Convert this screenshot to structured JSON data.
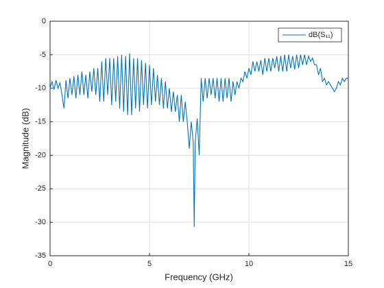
{
  "chart_data": {
    "type": "line",
    "xlabel": "Frequency (GHz)",
    "ylabel": "Magnitude (dB)",
    "x": [
      0,
      0.1,
      0.2,
      0.3,
      0.4,
      0.5,
      0.6,
      0.7,
      0.8,
      0.9,
      1,
      1.1,
      1.2,
      1.3,
      1.4,
      1.5,
      1.6,
      1.7,
      1.8,
      1.9,
      2,
      2.1,
      2.2,
      2.3,
      2.4,
      2.5,
      2.6,
      2.7,
      2.8,
      2.9,
      3,
      3.1,
      3.2,
      3.3,
      3.4,
      3.5,
      3.6,
      3.7,
      3.8,
      3.9,
      4,
      4.1,
      4.2,
      4.3,
      4.4,
      4.5,
      4.6,
      4.7,
      4.8,
      4.9,
      5,
      5.1,
      5.2,
      5.3,
      5.4,
      5.5,
      5.6,
      5.7,
      5.8,
      5.9,
      6,
      6.1,
      6.2,
      6.3,
      6.4,
      6.5,
      6.6,
      6.7,
      6.8,
      6.9,
      7,
      7.1,
      7.2,
      7.25,
      7.3,
      7.4,
      7.5,
      7.6,
      7.7,
      7.8,
      7.9,
      8,
      8.1,
      8.2,
      8.3,
      8.4,
      8.5,
      8.6,
      8.7,
      8.8,
      8.9,
      9,
      9.1,
      9.2,
      9.3,
      9.4,
      9.5,
      9.6,
      9.7,
      9.8,
      9.9,
      10,
      10.1,
      10.2,
      10.3,
      10.4,
      10.5,
      10.6,
      10.7,
      10.8,
      10.9,
      11,
      11.1,
      11.2,
      11.3,
      11.4,
      11.5,
      11.6,
      11.7,
      11.8,
      11.9,
      12,
      12.1,
      12.2,
      12.3,
      12.4,
      12.5,
      12.6,
      12.7,
      12.8,
      12.9,
      13,
      13.1,
      13.2,
      13.3,
      13.4,
      13.5,
      13.6,
      13.7,
      13.8,
      13.9,
      14,
      14.1,
      14.2,
      14.3,
      14.4,
      14.5,
      14.6,
      14.7,
      14.8,
      14.9,
      15
    ],
    "series": [
      {
        "name": "dB(S₁₁)",
        "color": "#0072BD",
        "values": [
          -10,
          -9,
          -10.2,
          -8.8,
          -10,
          -9.2,
          -11,
          -13,
          -8.8,
          -11.5,
          -8.5,
          -11,
          -8.2,
          -11.5,
          -8,
          -11,
          -7.5,
          -11,
          -8,
          -11.5,
          -7.5,
          -10.5,
          -7,
          -11,
          -7,
          -12,
          -6,
          -12,
          -5.5,
          -11,
          -5.5,
          -12.5,
          -5.5,
          -12,
          -5.2,
          -13,
          -5,
          -13.5,
          -5.2,
          -14,
          -4.8,
          -14,
          -5.5,
          -13,
          -5.5,
          -13.5,
          -5.8,
          -12.5,
          -6.2,
          -13,
          -6.5,
          -12.5,
          -7,
          -12,
          -8,
          -12.5,
          -8.5,
          -13,
          -9,
          -13,
          -10,
          -13.5,
          -10.5,
          -13.5,
          -11,
          -15,
          -11,
          -15,
          -12,
          -15,
          -19,
          -15,
          -18,
          -30.7,
          -18,
          -14.5,
          -20,
          -8.5,
          -12,
          -8.5,
          -11.5,
          -8.5,
          -11,
          -8.5,
          -11.5,
          -8.5,
          -12,
          -8.5,
          -12,
          -8.5,
          -11.5,
          -8.5,
          -12,
          -9,
          -11,
          -9,
          -10,
          -8.5,
          -9,
          -7.5,
          -8.5,
          -7,
          -8,
          -6,
          -7.5,
          -6,
          -7.5,
          -5.8,
          -8,
          -5.5,
          -7.5,
          -5.5,
          -7.5,
          -5.5,
          -7,
          -5.2,
          -7.5,
          -5.2,
          -7.5,
          -5,
          -7.5,
          -5,
          -7,
          -5.2,
          -7.2,
          -5,
          -7,
          -5,
          -6.5,
          -5,
          -6.5,
          -5.2,
          -6,
          -5.5,
          -6.5,
          -6.5,
          -8,
          -7,
          -9,
          -8.5,
          -9.5,
          -9,
          -9.5,
          -10,
          -10.5,
          -10,
          -9,
          -9.5,
          -8.5,
          -9,
          -8.5,
          -8.5
        ]
      }
    ],
    "xlim": [
      0,
      15
    ],
    "xticks": [
      0,
      5,
      10,
      15
    ],
    "ylim": [
      -35,
      0
    ],
    "yticks": [
      -35,
      -30,
      -25,
      -20,
      -15,
      -10,
      -5,
      0
    ],
    "grid": true,
    "legend": "northeast"
  }
}
